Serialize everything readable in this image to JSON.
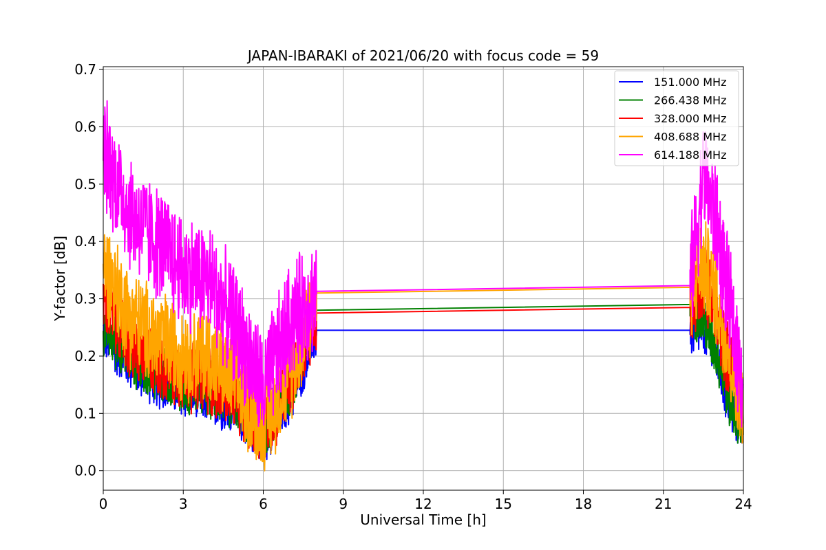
{
  "chart_data": {
    "type": "line",
    "title": "JAPAN-IBARAKI of 2021/06/20 with focus code = 59",
    "xlabel": "Universal Time [h]",
    "ylabel": "Y-factor [dB]",
    "xlim": [
      0,
      24
    ],
    "ylim": [
      -0.034,
      0.705
    ],
    "xticks": [
      0,
      3,
      6,
      9,
      12,
      15,
      18,
      21,
      24
    ],
    "yticks": [
      0.0,
      0.1,
      0.2,
      0.3,
      0.4,
      0.5,
      0.6,
      0.7
    ],
    "xtick_labels": [
      "0",
      "3",
      "6",
      "9",
      "12",
      "15",
      "18",
      "21",
      "24"
    ],
    "ytick_labels": [
      "0.0",
      "0.1",
      "0.2",
      "0.3",
      "0.4",
      "0.5",
      "0.6",
      "0.7"
    ],
    "grid": true,
    "legend_position": "top-right",
    "series": [
      {
        "name": "151.000 MHz",
        "color": "#0000ff",
        "x": [
          0,
          1,
          2,
          3,
          4,
          5,
          6,
          7,
          8,
          22,
          22.5,
          23,
          23.5,
          24
        ],
        "y": [
          0.24,
          0.19,
          0.16,
          0.14,
          0.13,
          0.11,
          0.06,
          0.13,
          0.245,
          0.245,
          0.25,
          0.2,
          0.11,
          0.08
        ],
        "amplitude": 0.035
      },
      {
        "name": "266.438 MHz",
        "color": "#008000",
        "x": [
          0,
          1,
          2,
          3,
          4,
          5,
          6,
          7,
          8,
          22,
          22.5,
          23,
          23.5,
          24
        ],
        "y": [
          0.25,
          0.2,
          0.17,
          0.15,
          0.14,
          0.12,
          0.07,
          0.14,
          0.28,
          0.29,
          0.26,
          0.21,
          0.12,
          0.08
        ],
        "amplitude": 0.035
      },
      {
        "name": "328.000 MHz",
        "color": "#ff0000",
        "x": [
          0,
          1,
          2,
          3,
          4,
          5,
          6,
          7,
          8,
          22,
          22.5,
          23,
          23.5,
          24
        ],
        "y": [
          0.3,
          0.22,
          0.19,
          0.17,
          0.16,
          0.13,
          0.07,
          0.15,
          0.275,
          0.285,
          0.33,
          0.27,
          0.18,
          0.1
        ],
        "amplitude": 0.045
      },
      {
        "name": "408.688 MHz",
        "color": "#ffa500",
        "x": [
          0,
          1,
          2,
          3,
          4,
          5,
          6,
          7,
          8,
          22,
          22.5,
          23,
          23.5,
          24
        ],
        "y": [
          0.36,
          0.27,
          0.23,
          0.21,
          0.2,
          0.15,
          0.08,
          0.17,
          0.31,
          0.32,
          0.36,
          0.3,
          0.2,
          0.1
        ],
        "amplitude": 0.06
      },
      {
        "name": "614.188 MHz",
        "color": "#ff00ff",
        "x": [
          0,
          1,
          2,
          3,
          4,
          5,
          6,
          7,
          8,
          22,
          22.5,
          23,
          23.5,
          24
        ],
        "y": [
          0.56,
          0.45,
          0.4,
          0.35,
          0.33,
          0.25,
          0.14,
          0.26,
          0.313,
          0.323,
          0.52,
          0.43,
          0.28,
          0.15
        ],
        "amplitude": 0.07
      }
    ]
  }
}
